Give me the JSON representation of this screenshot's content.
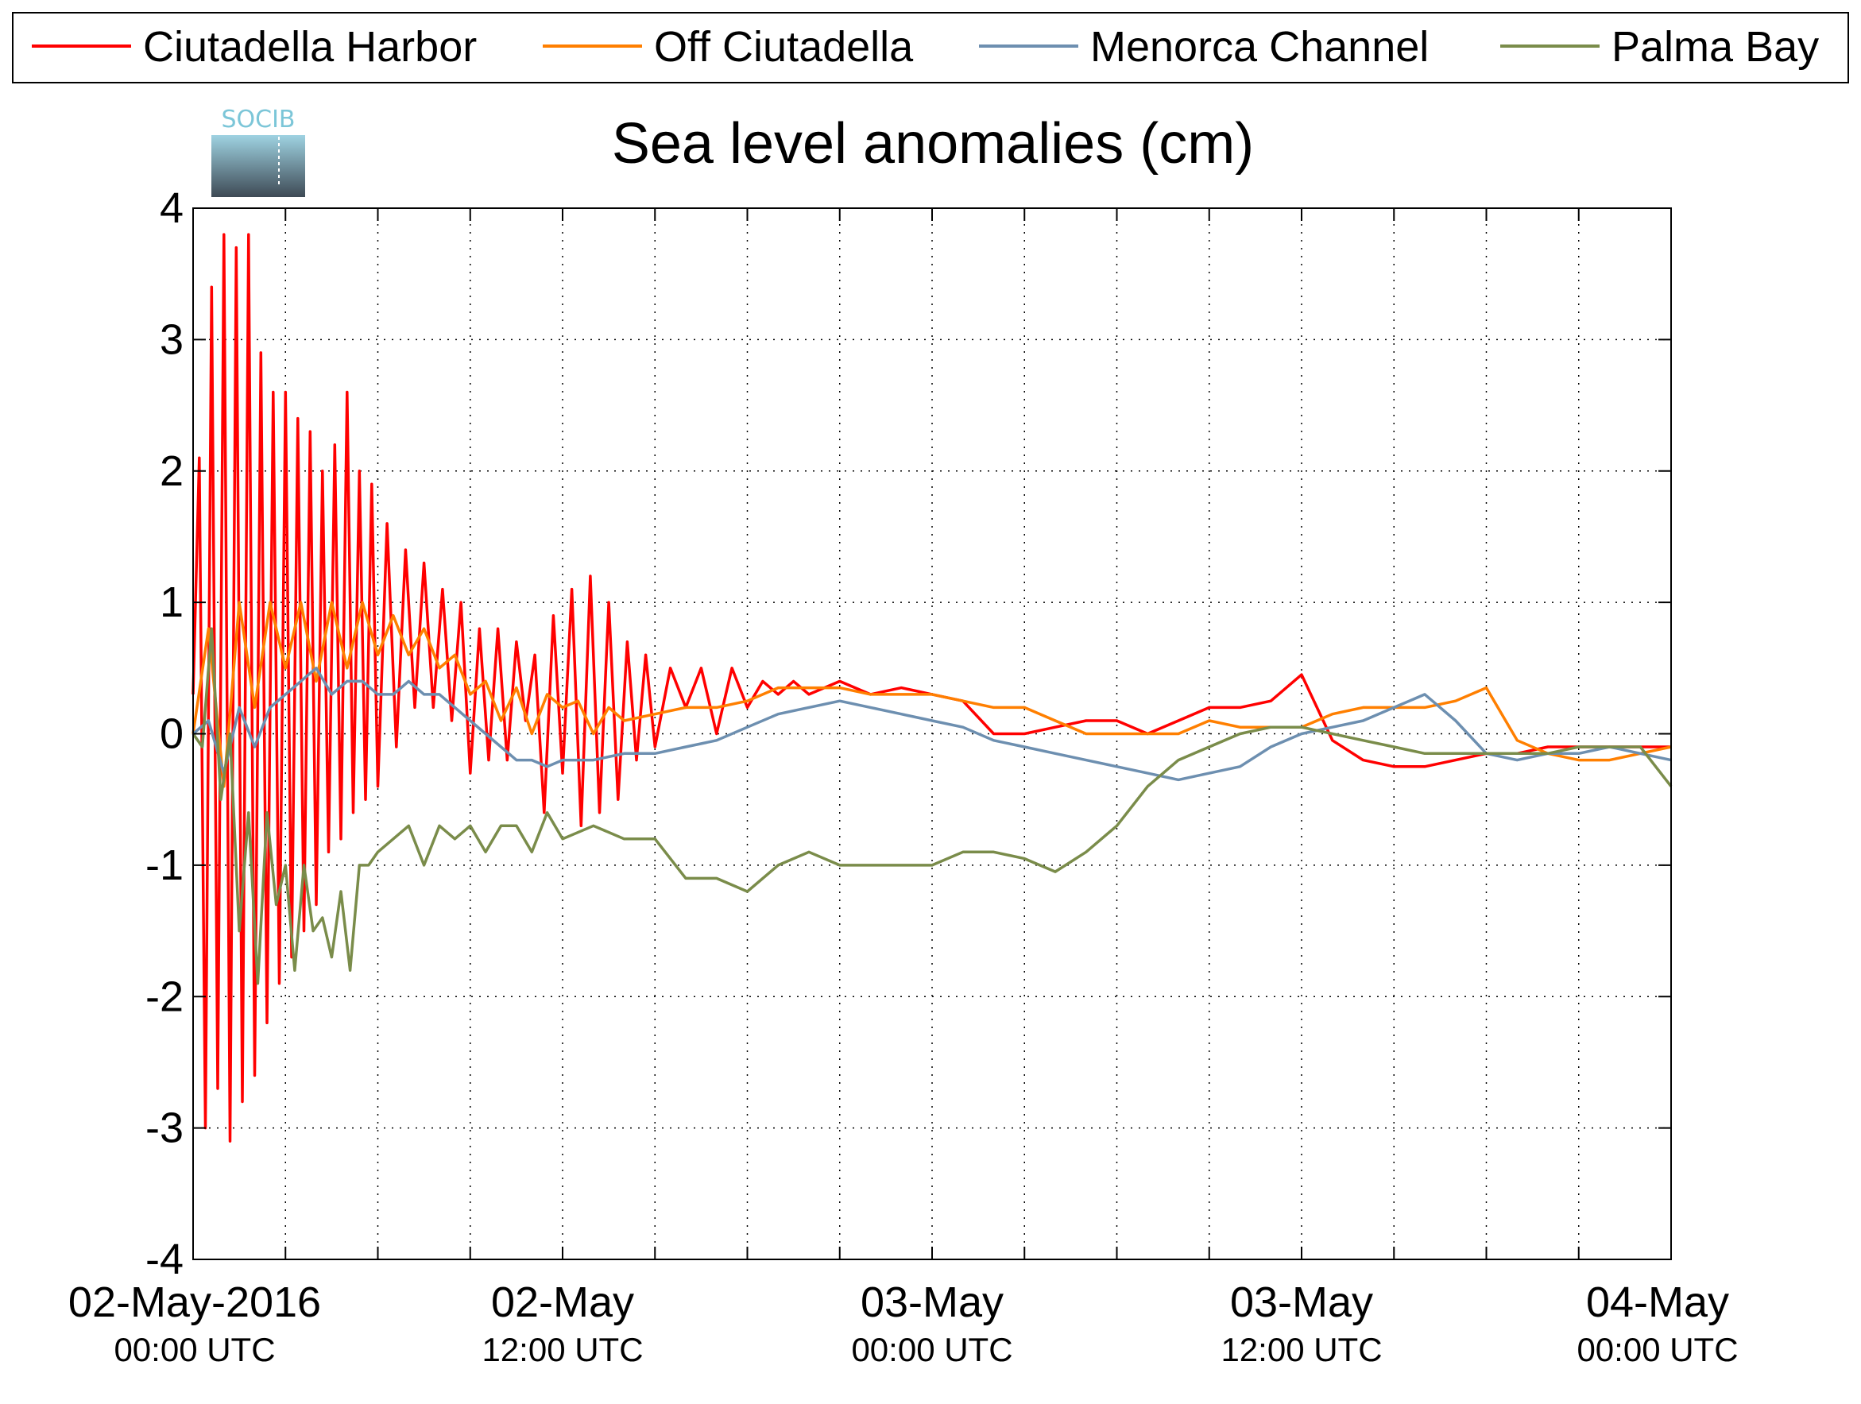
{
  "logo": {
    "text": "SOCIB"
  },
  "chart_data": {
    "type": "line",
    "title": "Sea level anomalies (cm)",
    "xlabel": "",
    "ylabel": "",
    "ylim": [
      -4,
      4
    ],
    "xlim_hours": [
      0,
      48
    ],
    "y_ticks": [
      "-4",
      "-3",
      "-2",
      "-1",
      "0",
      "1",
      "2",
      "3",
      "4"
    ],
    "x_ticks": [
      {
        "hour": 0,
        "date": "02-May-2016",
        "time": "00:00 UTC"
      },
      {
        "hour": 12,
        "date": "02-May",
        "time": "12:00 UTC"
      },
      {
        "hour": 24,
        "date": "03-May",
        "time": "00:00 UTC"
      },
      {
        "hour": 36,
        "date": "03-May",
        "time": "12:00 UTC"
      },
      {
        "hour": 48,
        "date": "04-May",
        "time": "00:00 UTC"
      }
    ],
    "grid": true,
    "legend_position": "top",
    "series": [
      {
        "name": "Ciutadella Harbor",
        "color": "#ff0000",
        "x": [
          0,
          0.2,
          0.4,
          0.6,
          0.8,
          1.0,
          1.2,
          1.4,
          1.6,
          1.8,
          2.0,
          2.2,
          2.4,
          2.6,
          2.8,
          3.0,
          3.2,
          3.4,
          3.6,
          3.8,
          4.0,
          4.2,
          4.4,
          4.6,
          4.8,
          5.0,
          5.2,
          5.4,
          5.6,
          5.8,
          6.0,
          6.3,
          6.6,
          6.9,
          7.2,
          7.5,
          7.8,
          8.1,
          8.4,
          8.7,
          9.0,
          9.3,
          9.6,
          9.9,
          10.2,
          10.5,
          10.8,
          11.1,
          11.4,
          11.7,
          12.0,
          12.3,
          12.6,
          12.9,
          13.2,
          13.5,
          13.8,
          14.1,
          14.4,
          14.7,
          15.0,
          15.5,
          16.0,
          16.5,
          17.0,
          17.5,
          18.0,
          18.5,
          19.0,
          19.5,
          20.0,
          21,
          22,
          23,
          24,
          25,
          26,
          27,
          28,
          29,
          30,
          31,
          32,
          33,
          34,
          35,
          36,
          37,
          38,
          39,
          40,
          41,
          42,
          43,
          44,
          45,
          46,
          47,
          48
        ],
        "values": [
          0.3,
          2.1,
          -3.0,
          3.4,
          -2.7,
          3.8,
          -3.1,
          3.7,
          -2.8,
          3.8,
          -2.6,
          2.9,
          -2.2,
          2.6,
          -1.9,
          2.6,
          -1.7,
          2.4,
          -1.5,
          2.3,
          -1.3,
          2.0,
          -0.9,
          2.2,
          -0.8,
          2.6,
          -0.6,
          2.0,
          -0.5,
          1.9,
          -0.4,
          1.6,
          -0.1,
          1.4,
          0.2,
          1.3,
          0.2,
          1.1,
          0.1,
          1.0,
          -0.3,
          0.8,
          -0.2,
          0.8,
          -0.2,
          0.7,
          0.1,
          0.6,
          -0.6,
          0.9,
          -0.3,
          1.1,
          -0.7,
          1.2,
          -0.6,
          1.0,
          -0.5,
          0.7,
          -0.2,
          0.6,
          -0.1,
          0.5,
          0.2,
          0.5,
          0.0,
          0.5,
          0.2,
          0.4,
          0.3,
          0.4,
          0.3,
          0.4,
          0.3,
          0.35,
          0.3,
          0.25,
          0.0,
          0.0,
          0.05,
          0.1,
          0.1,
          0.0,
          0.1,
          0.2,
          0.2,
          0.25,
          0.45,
          -0.05,
          -0.2,
          -0.25,
          -0.25,
          -0.2,
          -0.15,
          -0.15,
          -0.1,
          -0.1,
          -0.1,
          -0.1,
          -0.1
        ]
      },
      {
        "name": "Off Ciutadella",
        "color": "#ff7f00",
        "x": [
          0,
          0.5,
          1.0,
          1.5,
          2.0,
          2.5,
          3.0,
          3.5,
          4.0,
          4.5,
          5.0,
          5.5,
          6.0,
          6.5,
          7.0,
          7.5,
          8.0,
          8.5,
          9.0,
          9.5,
          10.0,
          10.5,
          11.0,
          11.5,
          12.0,
          12.5,
          13.0,
          13.5,
          14.0,
          15,
          16,
          17,
          18,
          19,
          20,
          21,
          22,
          23,
          24,
          25,
          26,
          27,
          28,
          29,
          30,
          31,
          32,
          33,
          34,
          35,
          36,
          37,
          38,
          39,
          40,
          41,
          42,
          43,
          44,
          45,
          46,
          47,
          48
        ],
        "values": [
          0.0,
          0.8,
          -0.4,
          1.0,
          0.2,
          1.0,
          0.5,
          1.0,
          0.4,
          1.0,
          0.5,
          1.0,
          0.6,
          0.9,
          0.6,
          0.8,
          0.5,
          0.6,
          0.3,
          0.4,
          0.1,
          0.35,
          0.0,
          0.3,
          0.2,
          0.25,
          0.0,
          0.2,
          0.1,
          0.15,
          0.2,
          0.2,
          0.25,
          0.35,
          0.35,
          0.35,
          0.3,
          0.3,
          0.3,
          0.25,
          0.2,
          0.2,
          0.1,
          0.0,
          0.0,
          0.0,
          0.0,
          0.1,
          0.05,
          0.05,
          0.05,
          0.15,
          0.2,
          0.2,
          0.2,
          0.25,
          0.35,
          -0.05,
          -0.15,
          -0.2,
          -0.2,
          -0.15,
          -0.1
        ]
      },
      {
        "name": "Menorca Channel",
        "color": "#6d8fb0",
        "x": [
          0,
          0.5,
          1.0,
          1.5,
          2.0,
          2.5,
          3.0,
          3.5,
          4.0,
          4.5,
          5.0,
          5.5,
          6.0,
          6.5,
          7.0,
          7.5,
          8.0,
          8.5,
          9.0,
          9.5,
          10.0,
          10.5,
          11.0,
          11.5,
          12.0,
          13,
          14,
          15,
          16,
          17,
          18,
          19,
          20,
          21,
          22,
          23,
          24,
          25,
          26,
          27,
          28,
          29,
          30,
          31,
          32,
          33,
          34,
          35,
          36,
          37,
          38,
          39,
          40,
          41,
          42,
          43,
          44,
          45,
          46,
          47,
          48
        ],
        "values": [
          0.0,
          0.1,
          -0.3,
          0.2,
          -0.1,
          0.2,
          0.3,
          0.4,
          0.5,
          0.3,
          0.4,
          0.4,
          0.3,
          0.3,
          0.4,
          0.3,
          0.3,
          0.2,
          0.1,
          0.0,
          -0.1,
          -0.2,
          -0.2,
          -0.25,
          -0.2,
          -0.2,
          -0.15,
          -0.15,
          -0.1,
          -0.05,
          0.05,
          0.15,
          0.2,
          0.25,
          0.2,
          0.15,
          0.1,
          0.05,
          -0.05,
          -0.1,
          -0.15,
          -0.2,
          -0.25,
          -0.3,
          -0.35,
          -0.3,
          -0.25,
          -0.1,
          0.0,
          0.05,
          0.1,
          0.2,
          0.3,
          0.1,
          -0.15,
          -0.2,
          -0.15,
          -0.15,
          -0.1,
          -0.15,
          -0.2
        ]
      },
      {
        "name": "Palma Bay",
        "color": "#7a8c4a",
        "x": [
          0,
          0.3,
          0.6,
          0.9,
          1.2,
          1.5,
          1.8,
          2.1,
          2.4,
          2.7,
          3.0,
          3.3,
          3.6,
          3.9,
          4.2,
          4.5,
          4.8,
          5.1,
          5.4,
          5.7,
          6.0,
          6.5,
          7.0,
          7.5,
          8.0,
          8.5,
          9.0,
          9.5,
          10.0,
          10.5,
          11.0,
          11.5,
          12.0,
          13,
          14,
          15,
          16,
          17,
          18,
          19,
          20,
          21,
          22,
          23,
          24,
          25,
          26,
          27,
          28,
          29,
          30,
          31,
          32,
          33,
          34,
          35,
          36,
          37,
          38,
          39,
          40,
          41,
          42,
          43,
          44,
          45,
          46,
          47,
          48
        ],
        "values": [
          0.0,
          -0.1,
          0.8,
          -0.5,
          0.0,
          -1.5,
          -0.6,
          -1.9,
          -0.6,
          -1.3,
          -1.0,
          -1.8,
          -1.0,
          -1.5,
          -1.4,
          -1.7,
          -1.2,
          -1.8,
          -1.0,
          -1.0,
          -0.9,
          -0.8,
          -0.7,
          -1.0,
          -0.7,
          -0.8,
          -0.7,
          -0.9,
          -0.7,
          -0.7,
          -0.9,
          -0.6,
          -0.8,
          -0.7,
          -0.8,
          -0.8,
          -1.1,
          -1.1,
          -1.2,
          -1.0,
          -0.9,
          -1.0,
          -1.0,
          -1.0,
          -1.0,
          -0.9,
          -0.9,
          -0.95,
          -1.05,
          -0.9,
          -0.7,
          -0.4,
          -0.2,
          -0.1,
          0.0,
          0.05,
          0.05,
          0.0,
          -0.05,
          -0.1,
          -0.15,
          -0.15,
          -0.15,
          -0.15,
          -0.15,
          -0.1,
          -0.1,
          -0.1,
          -0.4
        ]
      }
    ]
  }
}
